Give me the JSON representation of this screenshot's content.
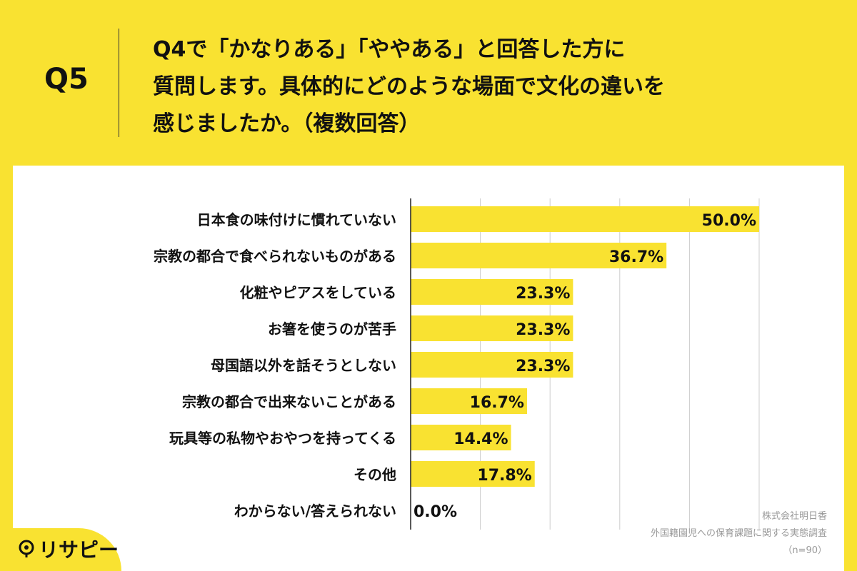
{
  "header": {
    "question_number": "Q5",
    "question_lines": [
      "Q4で「かなりある」「ややある」と回答した方に",
      "質問します。具体的にどのような場面で文化の違いを",
      "感じましたか。（複数回答）"
    ]
  },
  "chart_data": {
    "type": "bar",
    "orientation": "horizontal",
    "categories": [
      "日本食の味付けに慣れていない",
      "宗教の都合で食べられないものがある",
      "化粧やピアスをしている",
      "お箸を使うのが苦手",
      "母国語以外を話そうとしない",
      "宗教の都合で出来ないことがある",
      "玩具等の私物やおやつを持ってくる",
      "その他",
      "わからない/答えられない"
    ],
    "values": [
      50.0,
      36.7,
      23.3,
      23.3,
      23.3,
      16.7,
      14.4,
      17.8,
      0.0
    ],
    "value_labels": [
      "50.0%",
      "36.7%",
      "23.3%",
      "23.3%",
      "23.3%",
      "16.7%",
      "14.4%",
      "17.8%",
      "0.0%"
    ],
    "xlim": [
      0,
      50
    ],
    "grid": true,
    "bar_color": "#f9e231"
  },
  "footer": {
    "logo_text": "リサピー",
    "source_lines": [
      "株式会社明日香",
      "外国籍園児への保育課題に関する実態調査",
      "（n=90）"
    ]
  },
  "colors": {
    "background": "#f9e231",
    "panel": "#ffffff",
    "text": "#111111",
    "grid": "#cccccc"
  }
}
